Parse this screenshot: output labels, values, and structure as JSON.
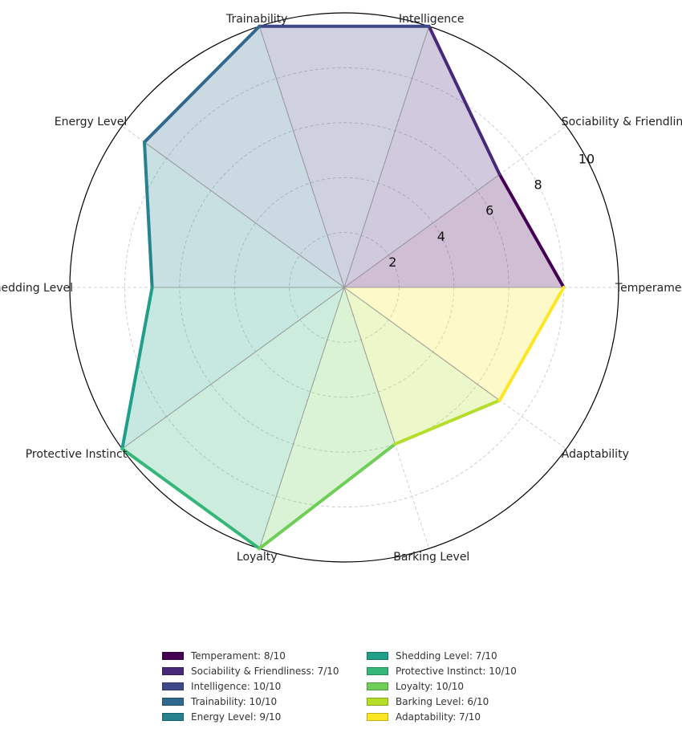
{
  "chart_data": {
    "type": "radar",
    "rmax": 10,
    "rticks": [
      "2",
      "4",
      "6",
      "8",
      "10"
    ],
    "categories": [
      {
        "label": "Temperament",
        "value": 8,
        "color": "#440154",
        "legend": "Temperament: 8/10"
      },
      {
        "label": "Sociability & Friendliness",
        "value": 7,
        "color": "#482878",
        "legend": "Sociability & Friendliness: 7/10"
      },
      {
        "label": "Intelligence",
        "value": 10,
        "color": "#3e4989",
        "legend": "Intelligence: 10/10"
      },
      {
        "label": "Trainability",
        "value": 10,
        "color": "#31688e",
        "legend": "Trainability: 10/10"
      },
      {
        "label": "Energy Level",
        "value": 9,
        "color": "#26828e",
        "legend": "Energy Level: 9/10"
      },
      {
        "label": "Shedding Level",
        "value": 7,
        "color": "#1f9e89",
        "legend": "Shedding Level: 7/10"
      },
      {
        "label": "Protective Instinct",
        "value": 10,
        "color": "#35b779",
        "legend": "Protective Instinct: 10/10"
      },
      {
        "label": "Loyalty",
        "value": 10,
        "color": "#6ece58",
        "legend": "Loyalty: 10/10"
      },
      {
        "label": "Barking Level",
        "value": 6,
        "color": "#b5de2b",
        "legend": "Barking Level: 6/10"
      },
      {
        "label": "Adaptability",
        "value": 7,
        "color": "#fde725",
        "legend": "Adaptability: 7/10"
      }
    ],
    "grid": true,
    "legend_position": "bottom"
  }
}
